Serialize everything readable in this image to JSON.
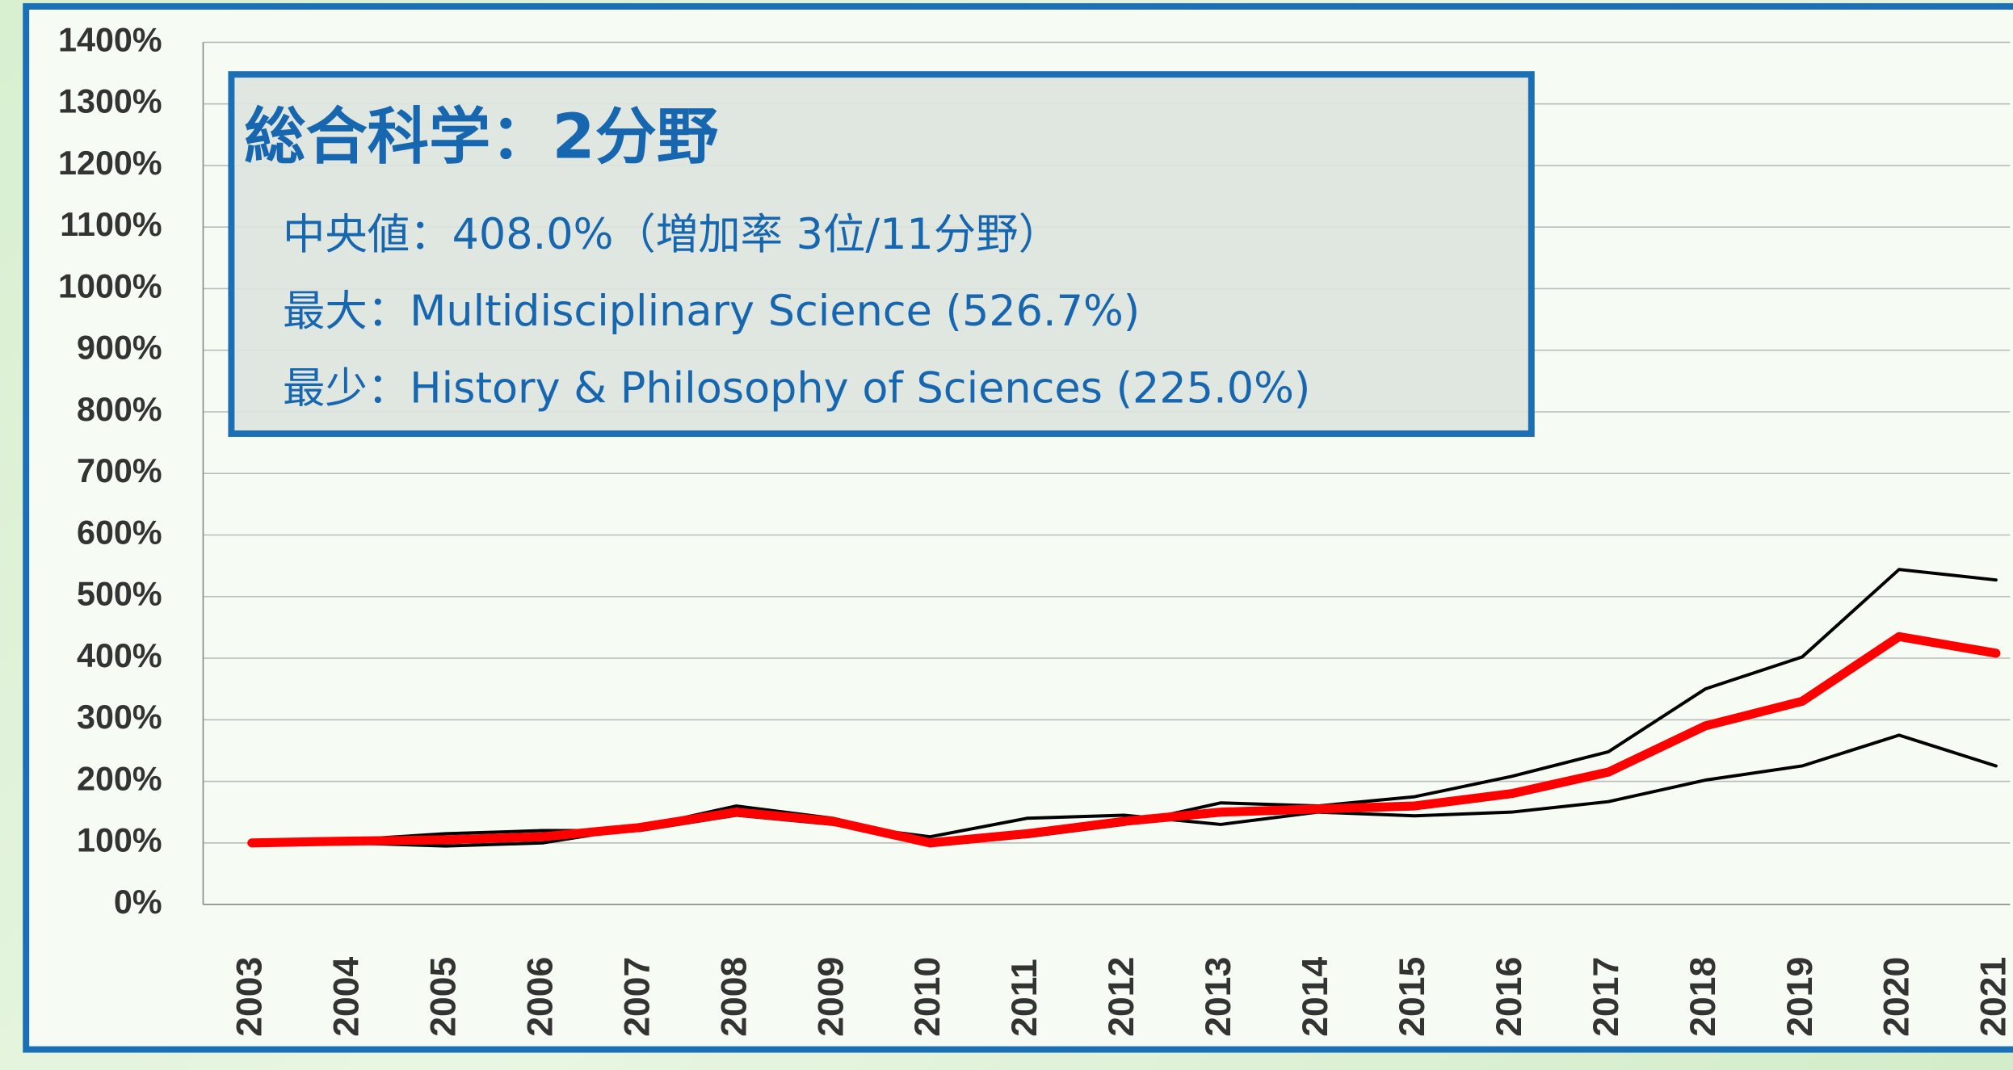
{
  "chart_data": {
    "type": "line",
    "annotations": {
      "title": "総合科学：2分野",
      "lines": [
        "中央値：408.0%（増加率 3位/11分野）",
        "最大：Multidisciplinary Science (526.7%)",
        "最少：History & Philosophy of Sciences (225.0%)"
      ]
    },
    "categories": [
      "2003",
      "2004",
      "2005",
      "2006",
      "2007",
      "2008",
      "2009",
      "2010",
      "2011",
      "2012",
      "2013",
      "2014",
      "2015",
      "2016",
      "2017",
      "2018",
      "2019",
      "2020",
      "2021"
    ],
    "series": [
      {
        "color": "#000000",
        "values": [
          100,
          100,
          95,
          100,
          125,
          160,
          140,
          100,
          110,
          130,
          165,
          160,
          175,
          208,
          248,
          350,
          402,
          544,
          527
        ]
      },
      {
        "color": "#000000",
        "values": [
          100,
          105,
          115,
          120,
          120,
          145,
          130,
          110,
          140,
          145,
          130,
          150,
          144,
          150,
          167,
          202,
          225,
          275,
          225
        ]
      },
      {
        "color": "#ff0000",
        "values": [
          100,
          103,
          105,
          110,
          125,
          150,
          135,
          100,
          115,
          135,
          150,
          155,
          160,
          180,
          215,
          290,
          330,
          435,
          408
        ]
      }
    ],
    "ylim": [
      0,
      1400
    ],
    "yticks": [
      {
        "value": 0,
        "label": "0%"
      },
      {
        "value": 100,
        "label": "100%"
      },
      {
        "value": 200,
        "label": "200%"
      },
      {
        "value": 300,
        "label": "300%"
      },
      {
        "value": 400,
        "label": "400%"
      },
      {
        "value": 500,
        "label": "500%"
      },
      {
        "value": 600,
        "label": "600%"
      },
      {
        "value": 700,
        "label": "700%"
      },
      {
        "value": 800,
        "label": "800%"
      },
      {
        "value": 900,
        "label": "900%"
      },
      {
        "value": 1000,
        "label": "1000%"
      },
      {
        "value": 1100,
        "label": "1100%"
      },
      {
        "value": 1200,
        "label": "1200%"
      },
      {
        "value": 1300,
        "label": "1300%"
      },
      {
        "value": 1400,
        "label": "1400%"
      }
    ],
    "grid": true
  }
}
